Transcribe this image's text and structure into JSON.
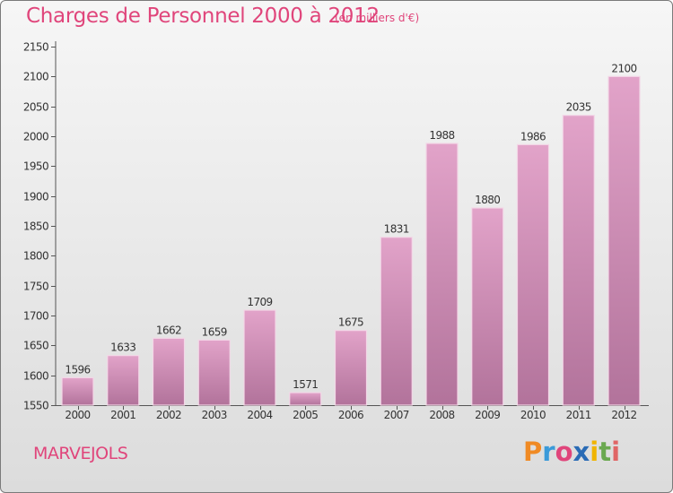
{
  "header": {
    "title": "Charges de Personnel 2000 à 2012",
    "subtitle": "(en milliers d'€)"
  },
  "footer": {
    "commune": "MARVEJOLS",
    "logo_letters": [
      "P",
      "r",
      "o",
      "x",
      "i",
      "t",
      "i"
    ],
    "logo_colors": [
      "#f08a24",
      "#3a9ad9",
      "#e0457b",
      "#2a6bb5",
      "#f0b400",
      "#6aa84f",
      "#e06666"
    ]
  },
  "colors": {
    "title": "#e0457b",
    "bar_top": "#e2a3c9",
    "bar_bottom": "#b2739b",
    "bar_edge": "#f3d7e7"
  },
  "chart_data": {
    "type": "bar",
    "title": "Charges de Personnel 2000 à 2012",
    "categories": [
      "2000",
      "2001",
      "2002",
      "2003",
      "2004",
      "2005",
      "2006",
      "2007",
      "2008",
      "2009",
      "2010",
      "2011",
      "2012"
    ],
    "values": [
      1596,
      1633,
      1662,
      1659,
      1709,
      1571,
      1675,
      1831,
      1988,
      1880,
      1986,
      2035,
      2100
    ],
    "ylim": [
      1550,
      2150
    ],
    "yticks": [
      1550,
      1600,
      1650,
      1700,
      1750,
      1800,
      1850,
      1900,
      1950,
      2000,
      2050,
      2100,
      2150
    ],
    "grid": false,
    "data_labels": true
  }
}
